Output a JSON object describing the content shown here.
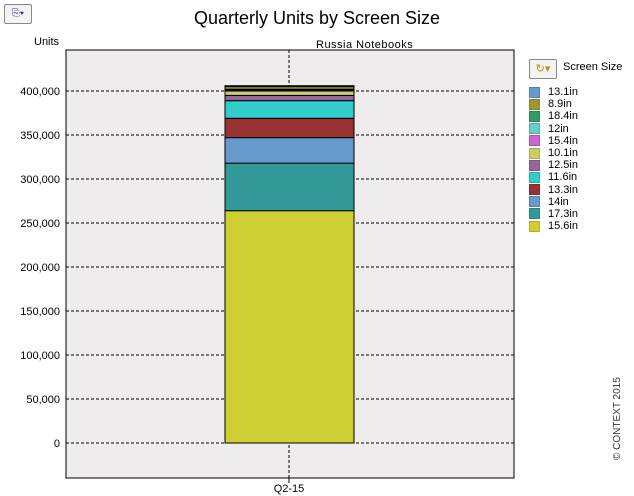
{
  "toolbar": {
    "export_icon": "chart-export-icon",
    "legend_icon": "refresh-dropdown-icon"
  },
  "copyright": "© CONTEXT 2015",
  "chart_data": {
    "type": "bar",
    "stacked": true,
    "title": "Quarterly Units by Screen Size",
    "subtitle": "Russia  Notebooks",
    "xlabel": "",
    "ylabel": "Units",
    "ylim": [
      -40000,
      450000
    ],
    "yticks": [
      0,
      50000,
      100000,
      150000,
      200000,
      250000,
      300000,
      350000,
      400000
    ],
    "ytick_labels": [
      "0",
      "50,000",
      "100,000",
      "150,000",
      "200,000",
      "250,000",
      "300,000",
      "350,000",
      "400,000"
    ],
    "categories": [
      "Q2-15"
    ],
    "grid": true,
    "legend_title": "Screen Size",
    "legend_position": "right",
    "series": [
      {
        "name": "15.6in",
        "color": "#cfcf33",
        "values": [
          264000
        ]
      },
      {
        "name": "17.3in",
        "color": "#339999",
        "values": [
          54000
        ]
      },
      {
        "name": "14in",
        "color": "#6699cc",
        "values": [
          29000
        ]
      },
      {
        "name": "13.3in",
        "color": "#993333",
        "values": [
          22000
        ]
      },
      {
        "name": "11.6in",
        "color": "#33cccc",
        "values": [
          20000
        ]
      },
      {
        "name": "12.5in",
        "color": "#996699",
        "values": [
          6000
        ]
      },
      {
        "name": "10.1in",
        "color": "#cccc66",
        "values": [
          5000
        ]
      },
      {
        "name": "15.4in",
        "color": "#cc66cc",
        "values": [
          500
        ]
      },
      {
        "name": "12in",
        "color": "#66cccc",
        "values": [
          500
        ]
      },
      {
        "name": "18.4in",
        "color": "#339966",
        "values": [
          1000
        ]
      },
      {
        "name": "8.9in",
        "color": "#999933",
        "values": [
          3000
        ]
      },
      {
        "name": "13.1in",
        "color": "#6699cc",
        "values": [
          1000
        ]
      }
    ]
  }
}
